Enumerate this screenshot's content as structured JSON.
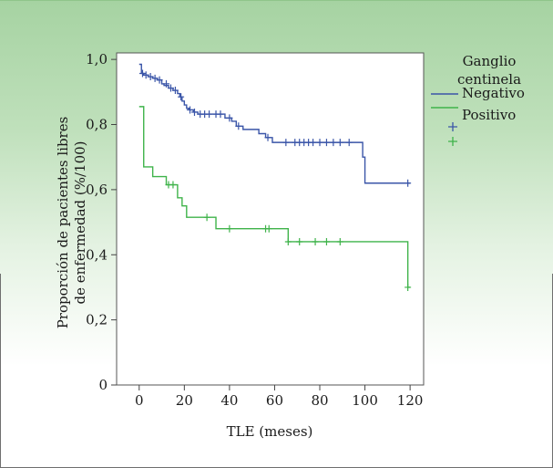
{
  "chart_data": {
    "type": "line",
    "xlabel": "TLE (meses)",
    "ylabel_lines": [
      "Proporción de pacientes libres",
      "de enfermedad (%/100)"
    ],
    "xlim": [
      -10,
      126
    ],
    "ylim": [
      0,
      1.02
    ],
    "x_ticks": [
      0,
      20,
      40,
      60,
      80,
      100,
      120
    ],
    "x_tick_labels": [
      "0",
      "20",
      "40",
      "60",
      "80",
      "100",
      "120"
    ],
    "y_ticks": [
      0,
      0.2,
      0.4,
      0.6,
      0.8,
      1.0
    ],
    "y_tick_labels": [
      "0",
      "0,2",
      "0,4",
      "0,6",
      "0,8",
      "1,0"
    ],
    "legend": {
      "title_lines": [
        "Ganglio",
        "centinela"
      ],
      "placement": "right, outside plot"
    },
    "series": [
      {
        "name": "Negativo",
        "color": "#3a55a8",
        "steps": [
          [
            0,
            0.985
          ],
          [
            1,
            0.957
          ],
          [
            2,
            0.952
          ],
          [
            4,
            0.947
          ],
          [
            6,
            0.942
          ],
          [
            8,
            0.937
          ],
          [
            10,
            0.925
          ],
          [
            11,
            0.92
          ],
          [
            13,
            0.912
          ],
          [
            15,
            0.905
          ],
          [
            17,
            0.895
          ],
          [
            18,
            0.885
          ],
          [
            19,
            0.872
          ],
          [
            20,
            0.86
          ],
          [
            21,
            0.85
          ],
          [
            22,
            0.845
          ],
          [
            24,
            0.838
          ],
          [
            26,
            0.832
          ],
          [
            38,
            0.82
          ],
          [
            41,
            0.81
          ],
          [
            43,
            0.795
          ],
          [
            46,
            0.785
          ],
          [
            53,
            0.772
          ],
          [
            56,
            0.76
          ],
          [
            59,
            0.745
          ],
          [
            99,
            0.7
          ],
          [
            100,
            0.62
          ],
          [
            120,
            0.62
          ]
        ],
        "censored": [
          [
            1.5,
            0.957
          ],
          [
            3,
            0.952
          ],
          [
            5,
            0.947
          ],
          [
            7,
            0.942
          ],
          [
            9,
            0.937
          ],
          [
            12,
            0.925
          ],
          [
            14,
            0.912
          ],
          [
            16,
            0.905
          ],
          [
            18.5,
            0.885
          ],
          [
            22.5,
            0.845
          ],
          [
            24.5,
            0.838
          ],
          [
            27,
            0.832
          ],
          [
            29,
            0.832
          ],
          [
            31,
            0.832
          ],
          [
            34,
            0.832
          ],
          [
            36,
            0.832
          ],
          [
            40,
            0.82
          ],
          [
            44,
            0.795
          ],
          [
            57,
            0.76
          ],
          [
            65,
            0.745
          ],
          [
            69,
            0.745
          ],
          [
            71,
            0.745
          ],
          [
            73,
            0.745
          ],
          [
            75,
            0.745
          ],
          [
            77,
            0.745
          ],
          [
            80,
            0.745
          ],
          [
            83,
            0.745
          ],
          [
            86,
            0.745
          ],
          [
            89,
            0.745
          ],
          [
            93,
            0.745
          ],
          [
            119,
            0.62
          ]
        ]
      },
      {
        "name": "Positivo",
        "color": "#3fb34a",
        "steps": [
          [
            0,
            0.855
          ],
          [
            2,
            0.67
          ],
          [
            6,
            0.64
          ],
          [
            12,
            0.615
          ],
          [
            17,
            0.575
          ],
          [
            19,
            0.55
          ],
          [
            21,
            0.515
          ],
          [
            34,
            0.48
          ],
          [
            66,
            0.44
          ],
          [
            119,
            0.3
          ],
          [
            120,
            0.3
          ]
        ],
        "censored": [
          [
            13,
            0.615
          ],
          [
            15,
            0.615
          ],
          [
            30,
            0.515
          ],
          [
            40,
            0.48
          ],
          [
            56,
            0.48
          ],
          [
            57.5,
            0.48
          ],
          [
            66,
            0.44
          ],
          [
            71,
            0.44
          ],
          [
            78,
            0.44
          ],
          [
            83,
            0.44
          ],
          [
            89,
            0.44
          ],
          [
            119,
            0.3
          ]
        ]
      }
    ]
  }
}
